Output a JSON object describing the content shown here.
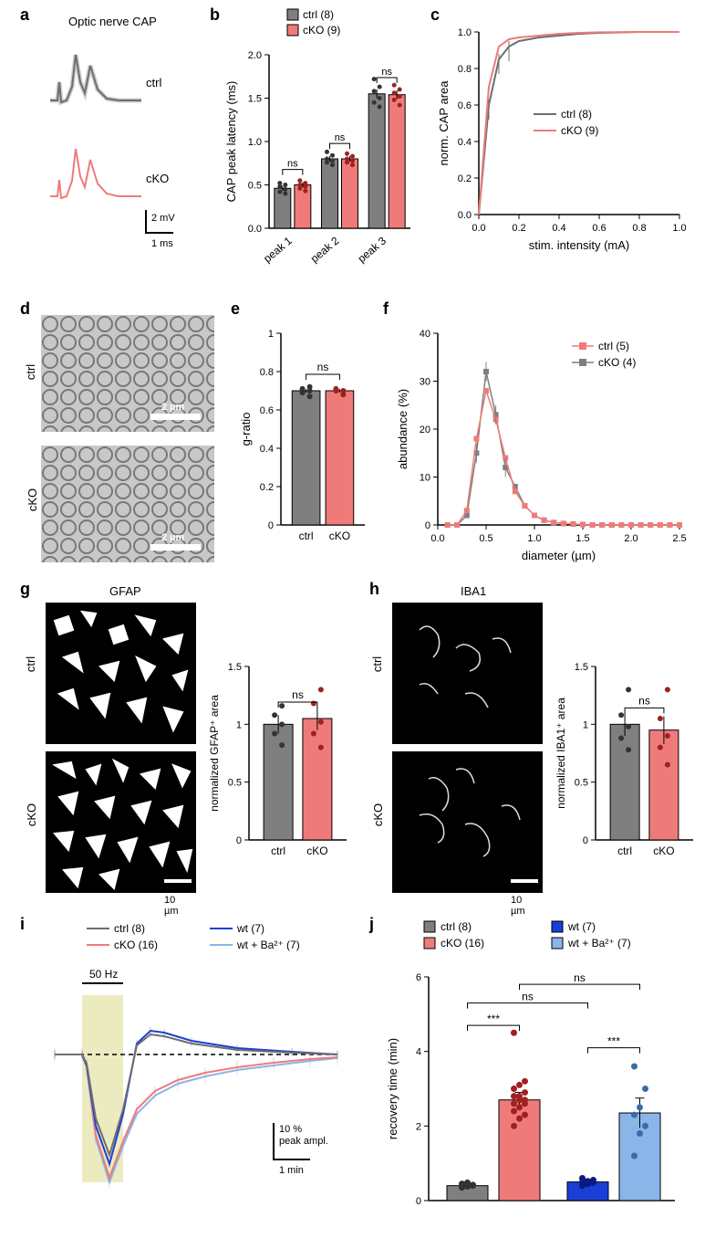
{
  "panel_a": {
    "title": "Optic nerve CAP",
    "ctrl_label": "ctrl",
    "cko_label": "cKO",
    "scale_y": "2 mV",
    "scale_x": "1 ms",
    "ctrl_color": "#6e6e6e",
    "cko_color": "#ee7b7a",
    "ctrl_fill": "#cccccc"
  },
  "panel_b": {
    "ylabel": "CAP peak latency (ms)",
    "legend_ctrl": "ctrl (8)",
    "legend_cko": "cKO (9)",
    "x_labels": [
      "peak 1",
      "peak 2",
      "peak 3"
    ],
    "ns_labels": [
      "ns",
      "ns",
      "ns"
    ],
    "ctrl_values": [
      0.46,
      0.8,
      1.55
    ],
    "cko_values": [
      0.5,
      0.8,
      1.54
    ],
    "ctrl_err": [
      0.03,
      0.03,
      0.05
    ],
    "cko_err": [
      0.03,
      0.03,
      0.05
    ],
    "ylim": [
      0,
      2.0
    ],
    "yticks": [
      0,
      0.5,
      1.0,
      1.5,
      2.0
    ],
    "ctrl_color": "#7f7f7f",
    "cko_color": "#ee7b7a",
    "ctrl_points": [
      [
        0.4,
        0.42,
        0.45,
        0.48,
        0.5,
        0.52
      ],
      [
        0.73,
        0.76,
        0.78,
        0.8,
        0.84,
        0.88
      ],
      [
        1.4,
        1.45,
        1.5,
        1.58,
        1.63,
        1.72
      ]
    ],
    "cko_points": [
      [
        0.43,
        0.46,
        0.48,
        0.5,
        0.52,
        0.55
      ],
      [
        0.73,
        0.76,
        0.78,
        0.8,
        0.83,
        0.86
      ],
      [
        1.42,
        1.48,
        1.52,
        1.56,
        1.6,
        1.65
      ]
    ]
  },
  "panel_c": {
    "ylabel": "norm. CAP area",
    "xlabel": "stim. intensity (mA)",
    "legend_ctrl": "ctrl (8)",
    "legend_cko": "cKO (9)",
    "ctrl_color": "#6e6e6e",
    "cko_color": "#ee7b7a",
    "xlim": [
      0,
      1.0
    ],
    "ylim": [
      0,
      1.0
    ],
    "xticks": [
      0,
      0.2,
      0.4,
      0.6,
      0.8,
      1.0
    ],
    "yticks": [
      0,
      0.2,
      0.4,
      0.6,
      0.8,
      1.0
    ],
    "ctrl_y": [
      0,
      0.6,
      0.85,
      0.92,
      0.95,
      0.97,
      0.98,
      0.99,
      0.995,
      1.0,
      1.0
    ],
    "cko_y": [
      0,
      0.7,
      0.92,
      0.96,
      0.97,
      0.98,
      0.99,
      0.995,
      0.998,
      1.0,
      1.0
    ],
    "x_vals": [
      0,
      0.05,
      0.1,
      0.15,
      0.2,
      0.3,
      0.4,
      0.5,
      0.6,
      0.8,
      1.0
    ]
  },
  "panel_d": {
    "ctrl_label": "ctrl",
    "cko_label": "cKO",
    "scale_label": "2 µm"
  },
  "panel_e": {
    "ylabel": "g-ratio",
    "ns_label": "ns",
    "x_labels": [
      "ctrl",
      "cKO"
    ],
    "values": [
      0.7,
      0.7
    ],
    "err": [
      0.01,
      0.01
    ],
    "ylim": [
      0,
      1.0
    ],
    "yticks": [
      0,
      0.2,
      0.4,
      0.6,
      0.8,
      1.0
    ],
    "ctrl_color": "#7f7f7f",
    "cko_color": "#ee7b7a",
    "ctrl_points": [
      0.67,
      0.69,
      0.7,
      0.71,
      0.72
    ],
    "cko_points": [
      0.68,
      0.7,
      0.7,
      0.71
    ]
  },
  "panel_f": {
    "ylabel": "abundance (%)",
    "xlabel": "diameter (µm)",
    "legend_ctrl": "ctrl (5)",
    "legend_cko": "cKO (4)",
    "ctrl_color": "#7f7f7f",
    "cko_color": "#ee7b7a",
    "xlim": [
      0,
      2.5
    ],
    "ylim": [
      0,
      40
    ],
    "xticks": [
      0,
      0.5,
      1.0,
      1.5,
      2.0,
      2.5
    ],
    "yticks": [
      0,
      10,
      20,
      30,
      40
    ],
    "x_vals": [
      0.1,
      0.2,
      0.3,
      0.4,
      0.5,
      0.6,
      0.7,
      0.8,
      0.9,
      1.0,
      1.1,
      1.2,
      1.3,
      1.4,
      1.5,
      1.6,
      1.7,
      1.8,
      1.9,
      2.0,
      2.1,
      2.2,
      2.3,
      2.4,
      2.5
    ],
    "ctrl_y": [
      0,
      0,
      2,
      15,
      32,
      23,
      12,
      8,
      4,
      2,
      1,
      0.5,
      0.3,
      0.2,
      0.1,
      0,
      0,
      0,
      0,
      0,
      0,
      0,
      0,
      0,
      0
    ],
    "cko_y": [
      0,
      0,
      3,
      18,
      28,
      22,
      14,
      7,
      4,
      2,
      1,
      0.5,
      0.3,
      0.2,
      0.1,
      0,
      0,
      0,
      0,
      0,
      0,
      0,
      0,
      0,
      0
    ]
  },
  "panel_g": {
    "header": "GFAP",
    "ctrl_label": "ctrl",
    "cko_label": "cKO",
    "scale_label": "10 µm",
    "ylabel": "normalized GFAP⁺ area",
    "ns_label": "ns",
    "x_labels": [
      "ctrl",
      "cKO"
    ],
    "values": [
      1.0,
      1.05
    ],
    "err": [
      0.08,
      0.1
    ],
    "ylim": [
      0,
      1.5
    ],
    "yticks": [
      0,
      0.5,
      1.0,
      1.5
    ],
    "ctrl_color": "#7f7f7f",
    "cko_color": "#ee7b7a",
    "ctrl_points": [
      0.82,
      0.92,
      1.0,
      1.08,
      1.16
    ],
    "cko_points": [
      0.8,
      0.92,
      1.02,
      1.18,
      1.3
    ]
  },
  "panel_h": {
    "header": "IBA1",
    "ctrl_label": "ctrl",
    "cko_label": "cKO",
    "scale_label": "10 µm",
    "ylabel": "normalized IBA1⁺ area",
    "ns_label": "ns",
    "x_labels": [
      "ctrl",
      "cKO"
    ],
    "values": [
      1.0,
      0.95
    ],
    "err": [
      0.1,
      0.12
    ],
    "ylim": [
      0,
      1.5
    ],
    "yticks": [
      0,
      0.5,
      1.0,
      1.5
    ],
    "ctrl_color": "#7f7f7f",
    "cko_color": "#ee7b7a",
    "ctrl_points": [
      0.78,
      0.88,
      0.98,
      1.08,
      1.3
    ],
    "cko_points": [
      0.65,
      0.8,
      0.9,
      1.05,
      1.3
    ]
  },
  "panel_i": {
    "legend_ctrl": "ctrl (8)",
    "legend_cko": "cKO (16)",
    "legend_wt": "wt (7)",
    "legend_wtba": "wt + Ba²⁺ (7)",
    "stim_label": "50 Hz",
    "scale_y": "10 %\npeak ampl.",
    "scale_x": "1 min",
    "ctrl_color": "#6e6e6e",
    "cko_color": "#ee7b7a",
    "wt_color": "#1a3fd6",
    "wtba_color": "#8ab5e8",
    "stim_fill": "#ecebc0"
  },
  "panel_j": {
    "ylabel": "recovery time (min)",
    "legend_ctrl": "ctrl (8)",
    "legend_cko": "cKO (16)",
    "legend_wt": "wt (7)",
    "legend_wtba": "wt + Ba²⁺ (7)",
    "x_labels": [
      "",
      "",
      "",
      ""
    ],
    "values": [
      0.4,
      2.7,
      0.5,
      2.35
    ],
    "err": [
      0.05,
      0.2,
      0.05,
      0.4
    ],
    "ylim": [
      0,
      6
    ],
    "yticks": [
      0,
      2,
      4,
      6
    ],
    "ctrl_color": "#7f7f7f",
    "cko_color": "#ee7b7a",
    "wt_color": "#1a3fd6",
    "wtba_color": "#8ab5e8",
    "stars1": "***",
    "stars2": "***",
    "ns1": "ns",
    "ns2": "ns",
    "ctrl_points": [
      0.35,
      0.38,
      0.4,
      0.4,
      0.42,
      0.42,
      0.45,
      0.48
    ],
    "cko_points": [
      2.0,
      2.2,
      2.3,
      2.4,
      2.5,
      2.6,
      2.6,
      2.7,
      2.7,
      2.8,
      2.8,
      2.9,
      3.0,
      3.1,
      3.2,
      4.5
    ],
    "wt_points": [
      0.4,
      0.45,
      0.48,
      0.5,
      0.52,
      0.55,
      0.6
    ],
    "wtba_points": [
      1.2,
      1.8,
      2.0,
      2.3,
      2.5,
      3.0,
      3.6
    ]
  }
}
